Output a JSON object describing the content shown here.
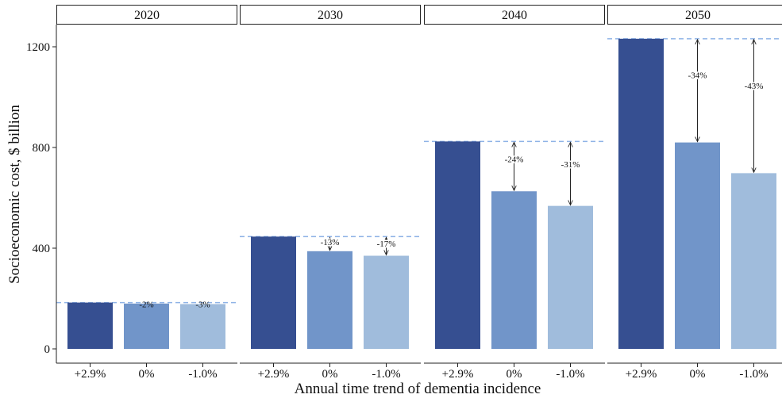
{
  "chart_data": {
    "type": "bar",
    "facets": [
      "2020",
      "2030",
      "2040",
      "2050"
    ],
    "categories": [
      "+2.9%",
      "0%",
      "-1.0%"
    ],
    "xlabel": "Annual time trend of dementia incidence",
    "ylabel": "Socioeconomic cost, $ billion",
    "ylim": [
      0,
      1260
    ],
    "yticks": [
      0,
      400,
      800,
      1200
    ],
    "panels": [
      {
        "facet": "2020",
        "values": [
          184,
          180,
          178
        ],
        "changes": [
          "",
          "-2%",
          "-3%"
        ]
      },
      {
        "facet": "2030",
        "values": [
          446,
          388,
          370
        ],
        "changes": [
          "",
          "-13%",
          "-17%"
        ]
      },
      {
        "facet": "2040",
        "values": [
          824,
          626,
          568
        ],
        "changes": [
          "",
          "-24%",
          "-31%"
        ]
      },
      {
        "facet": "2050",
        "values": [
          1232,
          820,
          698
        ],
        "changes": [
          "",
          "-34%",
          "-43%"
        ]
      }
    ],
    "bar_colors": [
      "#364f91",
      "#7195c9",
      "#a0bcdc"
    ],
    "reference_line_color": "#8fb3e6",
    "grid": false,
    "legend": "none"
  }
}
